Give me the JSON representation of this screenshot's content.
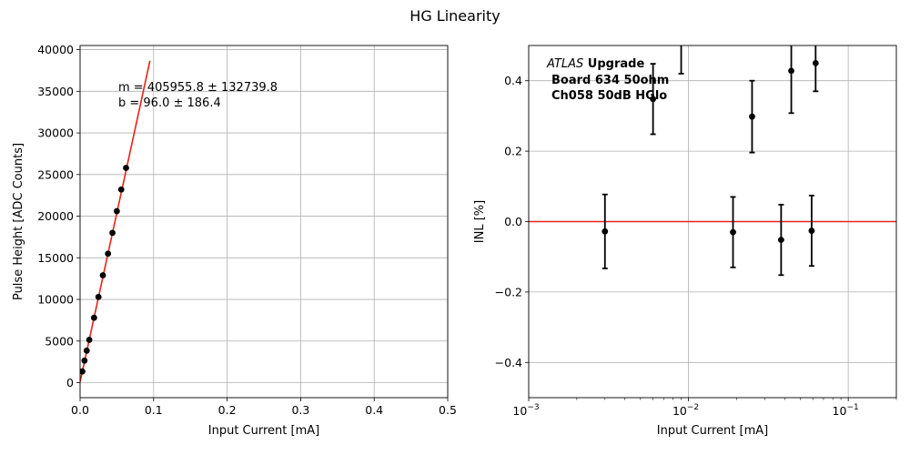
{
  "figure": {
    "title": "HG Linearity"
  },
  "chart_data": [
    {
      "type": "scatter",
      "title": "",
      "xlabel": "Input Current [mA]",
      "ylabel": "Pulse Height [ADC Counts]",
      "xlim": [
        0,
        0.5
      ],
      "ylim": [
        -1800,
        40500
      ],
      "x_scale": "linear",
      "xticks": [
        0,
        0.1,
        0.2,
        0.3,
        0.4,
        0.5
      ],
      "xtick_labels": [
        "0.0",
        "0.1",
        "0.2",
        "0.3",
        "0.4",
        "0.5"
      ],
      "yticks": [
        0,
        5000,
        10000,
        15000,
        20000,
        25000,
        30000,
        35000,
        40000
      ],
      "ytick_labels": [
        "0",
        "5000",
        "10000",
        "15000",
        "20000",
        "25000",
        "30000",
        "35000",
        "40000"
      ],
      "grid": true,
      "series": [
        {
          "color": "#000000",
          "x": [
            0.003,
            0.006,
            0.009,
            0.0125,
            0.019,
            0.025,
            0.031,
            0.038,
            0.044,
            0.05,
            0.056,
            0.0625
          ],
          "y": [
            1350,
            2650,
            3850,
            5150,
            7800,
            10300,
            12900,
            15500,
            18000,
            20600,
            23200,
            25800
          ]
        }
      ],
      "fit_line": {
        "color": "#e8221a",
        "x": [
          0,
          0.095
        ],
        "y": [
          96,
          38663
        ]
      },
      "annotation": {
        "line1": "m = 405955.8 ± 132739.8",
        "line2": " b = 96.0 ± 186.4"
      }
    },
    {
      "type": "scatter",
      "title": "",
      "xlabel": "Input Current [mA]",
      "ylabel": "INL [%]",
      "xlim": [
        0.001,
        0.2
      ],
      "ylim": [
        -0.5,
        0.5
      ],
      "x_scale": "log",
      "xticks": [
        0.001,
        0.01,
        0.1
      ],
      "xtick_labels": [
        {
          "base": "10",
          "exp": "−3"
        },
        {
          "base": "10",
          "exp": "−2"
        },
        {
          "base": "10",
          "exp": "−1"
        }
      ],
      "yticks": [
        -0.4,
        -0.2,
        0.0,
        0.2,
        0.4
      ],
      "ytick_labels": [
        "−0.4",
        "−0.2",
        "0.0",
        "0.2",
        "0.4"
      ],
      "grid": true,
      "series": [
        {
          "color": "#000000",
          "x": [
            0.003,
            0.006,
            0.009,
            0.019,
            0.025,
            0.038,
            0.044,
            0.059,
            0.0625
          ],
          "y": [
            -0.028,
            0.348,
            0.55,
            -0.03,
            0.298,
            -0.052,
            0.428,
            -0.026,
            0.45
          ],
          "err": [
            0.105,
            0.1,
            0.13,
            0.1,
            0.102,
            0.1,
            0.12,
            0.1,
            0.08
          ]
        }
      ],
      "hline": {
        "y": 0,
        "color": "#e8221a"
      },
      "annotation": {
        "line1_italic": "ATLAS",
        "line1_bold": " Upgrade",
        "line2": "Board 634 50ohm",
        "line3": "Ch058 50dB HGlo"
      }
    }
  ]
}
